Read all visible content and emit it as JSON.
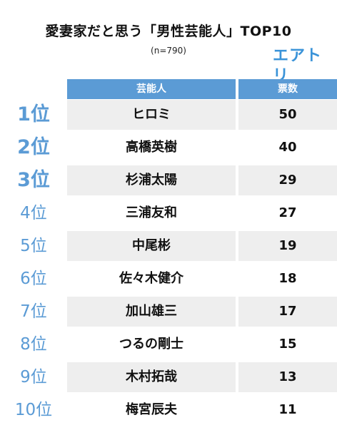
{
  "title": "愛妻家だと思う「男性芸能人」TOP10",
  "subtitle": "(n=790)",
  "brand": {
    "logo_text": "エアトリ",
    "accent": "#3a93d8"
  },
  "colors": {
    "header_bg": "#5b9bd5",
    "rank_text": "#5b9bd5",
    "row_shade": "#eeeeee"
  },
  "chart_data": {
    "type": "table",
    "title": "愛妻家だと思う「男性芸能人」TOP10",
    "subtitle": "(n=790)",
    "columns": [
      "芸能人",
      "票数"
    ],
    "rows": [
      {
        "rank": "1位",
        "name": "ヒロミ",
        "votes": 50
      },
      {
        "rank": "2位",
        "name": "高橋英樹",
        "votes": 40
      },
      {
        "rank": "3位",
        "name": "杉浦太陽",
        "votes": 29
      },
      {
        "rank": "4位",
        "name": "三浦友和",
        "votes": 27
      },
      {
        "rank": "5位",
        "name": "中尾彬",
        "votes": 19
      },
      {
        "rank": "6位",
        "name": "佐々木健介",
        "votes": 18
      },
      {
        "rank": "7位",
        "name": "加山雄三",
        "votes": 17
      },
      {
        "rank": "8位",
        "name": "つるの剛士",
        "votes": 15
      },
      {
        "rank": "9位",
        "name": "木村拓哉",
        "votes": 13
      },
      {
        "rank": "10位",
        "name": "梅宮辰夫",
        "votes": 11
      }
    ]
  }
}
